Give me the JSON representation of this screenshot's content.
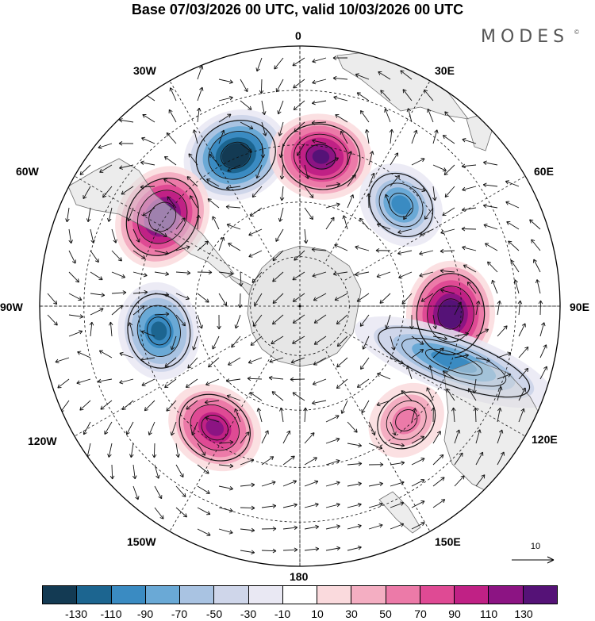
{
  "title": "Base 07/03/2026 00 UTC, valid 10/03/2026 00 UTC",
  "brand": {
    "name": "MODES",
    "mark": "©"
  },
  "longitude_labels": [
    "0",
    "30E",
    "60E",
    "90E",
    "120E",
    "150E",
    "180",
    "150W",
    "120W",
    "90W",
    "60W",
    "30W"
  ],
  "vector_reference": {
    "value": "10"
  },
  "colorbar": {
    "colors": [
      "#133a53",
      "#1c6590",
      "#3a8bc2",
      "#6aa9d6",
      "#a9c3e2",
      "#cfd6ea",
      "#e9e8f3",
      "#ffffff",
      "#fadadd",
      "#f4aec2",
      "#ec7aa8",
      "#df4a94",
      "#c02185",
      "#8c1483",
      "#551277"
    ],
    "tick_labels": [
      "-130",
      "-110",
      "-90",
      "-70",
      "-50",
      "-30",
      "-10",
      "10",
      "30",
      "50",
      "70",
      "90",
      "110",
      "130"
    ]
  },
  "anomaly_cells": [
    {
      "name": "neg-cell-south-atlantic",
      "lon": -23,
      "colat": 0.63,
      "value": -150
    },
    {
      "name": "pos-cell-greenwich",
      "lon": 8,
      "colat": 0.58,
      "value": 135
    },
    {
      "name": "neg-cell-south-indian-west",
      "lon": 45,
      "colat": 0.55,
      "value": -85
    },
    {
      "name": "pos-cell-south-america",
      "lon": -57,
      "colat": 0.63,
      "value": 150
    },
    {
      "name": "neg-cell-southeast-pacific",
      "lon": -100,
      "colat": 0.55,
      "value": -115
    },
    {
      "name": "pos-cell-south-indian-east",
      "lon": 93,
      "colat": 0.58,
      "value": 150
    },
    {
      "name": "neg-cell-australia-band",
      "lon": 110,
      "colat": 0.63,
      "value": -85
    },
    {
      "name": "pos-cell-south-pacific",
      "lon": -145,
      "colat": 0.57,
      "value": 115
    },
    {
      "name": "pos-cell-tasman",
      "lon": 137,
      "colat": 0.6,
      "value": 50
    }
  ]
}
